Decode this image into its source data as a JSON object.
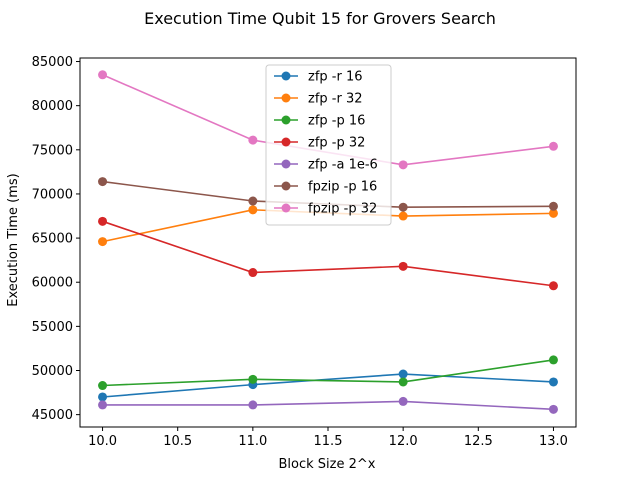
{
  "chart_data": {
    "type": "line",
    "title": "Execution Time Qubit 15 for Grovers Search",
    "xlabel": "Block Size 2^x",
    "ylabel": "Execution Time (ms)",
    "x": [
      10,
      11,
      12,
      13
    ],
    "xlim": [
      9.85,
      13.15
    ],
    "ylim": [
      43600,
      85400
    ],
    "xticks": [
      10.0,
      10.5,
      11.0,
      11.5,
      12.0,
      12.5,
      13.0
    ],
    "xtick_labels": [
      "10.0",
      "10.5",
      "11.0",
      "11.5",
      "12.0",
      "12.5",
      "13.0"
    ],
    "yticks": [
      45000,
      50000,
      55000,
      60000,
      65000,
      70000,
      75000,
      80000,
      85000
    ],
    "ytick_labels": [
      "45000",
      "50000",
      "55000",
      "60000",
      "65000",
      "70000",
      "75000",
      "80000",
      "85000"
    ],
    "grid": false,
    "legend_position": "top-center",
    "series": [
      {
        "name": "zfp -r 16",
        "color": "#1f77b4",
        "values": [
          47000,
          48400,
          49600,
          48700
        ]
      },
      {
        "name": "zfp -r 32",
        "color": "#ff7f0e",
        "values": [
          64600,
          68200,
          67500,
          67800
        ]
      },
      {
        "name": "zfp -p 16",
        "color": "#2ca02c",
        "values": [
          48300,
          49000,
          48700,
          51200
        ]
      },
      {
        "name": "zfp -p 32",
        "color": "#d62728",
        "values": [
          66900,
          61100,
          61800,
          59600
        ]
      },
      {
        "name": "zfp -a 1e-6",
        "color": "#9467bd",
        "values": [
          46100,
          46100,
          46500,
          45600
        ]
      },
      {
        "name": "fpzip -p 16",
        "color": "#8c564b",
        "values": [
          71400,
          69200,
          68500,
          68600
        ]
      },
      {
        "name": "fpzip -p 32",
        "color": "#e377c2",
        "values": [
          83500,
          76100,
          73300,
          75400
        ]
      }
    ]
  }
}
